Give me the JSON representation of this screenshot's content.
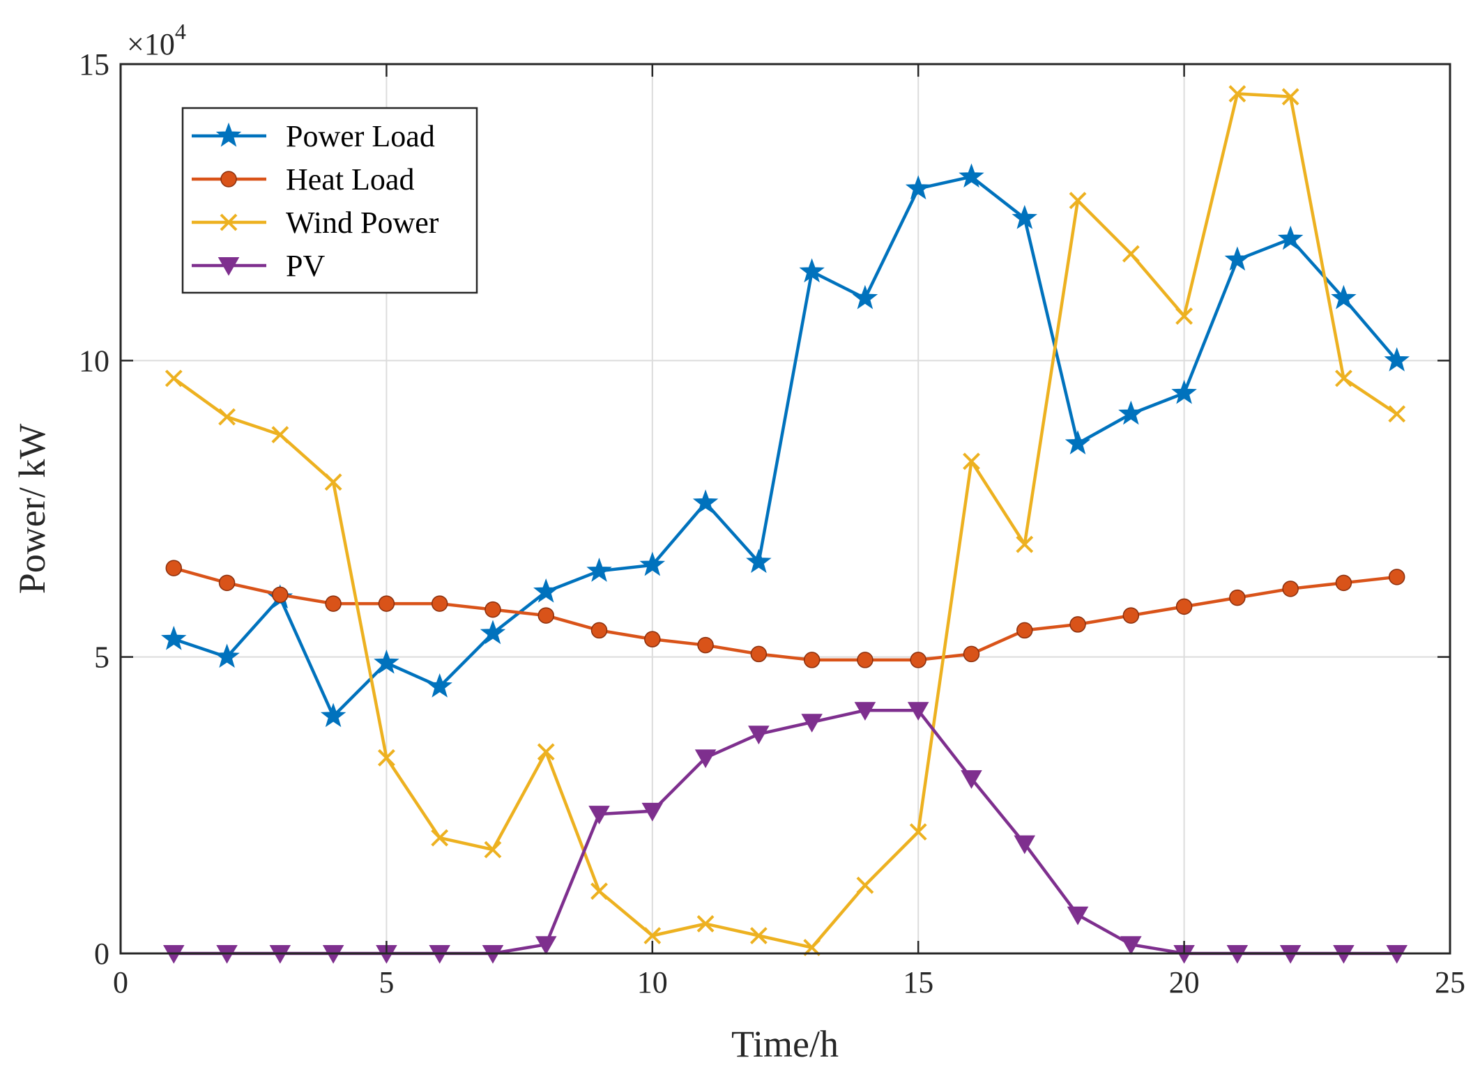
{
  "chart_data": {
    "type": "line",
    "title": "",
    "xlabel": "Time/h",
    "ylabel": "Power/ kW",
    "xlim": [
      0,
      25
    ],
    "ylim": [
      0,
      150000
    ],
    "x_ticks": [
      0,
      5,
      10,
      15,
      20,
      25
    ],
    "y_ticks": [
      0,
      50000,
      100000,
      150000
    ],
    "y_tick_labels": [
      "0",
      "5",
      "10",
      "15"
    ],
    "y_exponent_label": "×10",
    "y_exponent_power": "4",
    "grid": true,
    "legend_position": "top-left",
    "x": [
      1,
      2,
      3,
      4,
      5,
      6,
      7,
      8,
      9,
      10,
      11,
      12,
      13,
      14,
      15,
      16,
      17,
      18,
      19,
      20,
      21,
      22,
      23,
      24
    ],
    "series": [
      {
        "name": "Power Load",
        "color": "#0072BD",
        "marker": "star",
        "values": [
          53000,
          50000,
          60000,
          40000,
          49000,
          45000,
          54000,
          61000,
          64500,
          65500,
          76000,
          66000,
          115000,
          110500,
          129000,
          131000,
          124000,
          86000,
          91000,
          94500,
          117000,
          120500,
          110500,
          100000
        ]
      },
      {
        "name": "Heat Load",
        "color": "#D95319",
        "marker": "circle",
        "values": [
          65000,
          62500,
          60500,
          59000,
          59000,
          59000,
          58000,
          57000,
          54500,
          53000,
          52000,
          50500,
          49500,
          49500,
          49500,
          50500,
          54500,
          55500,
          57000,
          58500,
          60000,
          61500,
          62500,
          63500
        ]
      },
      {
        "name": "Wind Power",
        "color": "#EDB120",
        "marker": "x",
        "values": [
          97000,
          90500,
          87500,
          79500,
          33000,
          19500,
          17500,
          34000,
          10500,
          3000,
          5000,
          3000,
          1000,
          11500,
          20500,
          83000,
          69000,
          127000,
          118000,
          107500,
          145000,
          144500,
          97000,
          91000
        ]
      },
      {
        "name": "PV",
        "color": "#7E2F8E",
        "marker": "triangle-down",
        "values": [
          0,
          0,
          0,
          0,
          0,
          0,
          0,
          1500,
          23500,
          24000,
          33000,
          37000,
          39000,
          41000,
          41000,
          29500,
          18500,
          6500,
          1500,
          0,
          0,
          0,
          0,
          0
        ]
      }
    ]
  }
}
